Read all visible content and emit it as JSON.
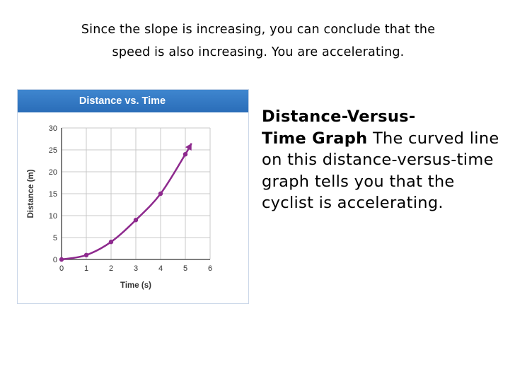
{
  "caption": {
    "line1": "Since the slope is increasing, you can conclude that the",
    "line2": "speed is also increasing. You are accelerating."
  },
  "description": {
    "term_line1": "Distance-Versus-",
    "term_line2": "Time Graph",
    "body": "The curved line on this distance-versus-time graph tells you that the cyclist is accelerating."
  },
  "colors": {
    "header": "#2f78c4",
    "curve": "#8e2a8e",
    "grid": "#c8c8c8"
  },
  "chart_data": {
    "type": "line",
    "title": "Distance vs. Time",
    "xlabel": "Time (s)",
    "ylabel": "Distance (m)",
    "xlim": [
      0,
      6
    ],
    "ylim": [
      0,
      30
    ],
    "xticks": [
      0,
      1,
      2,
      3,
      4,
      5,
      6
    ],
    "yticks": [
      0,
      5,
      10,
      15,
      20,
      25,
      30
    ],
    "grid": true,
    "series": [
      {
        "x": [
          0,
          1,
          2,
          3,
          4,
          5
        ],
        "y": [
          0,
          1,
          4,
          9,
          15,
          24
        ]
      }
    ],
    "arrow_end": {
      "x": 5.25,
      "y": 26.5
    }
  }
}
